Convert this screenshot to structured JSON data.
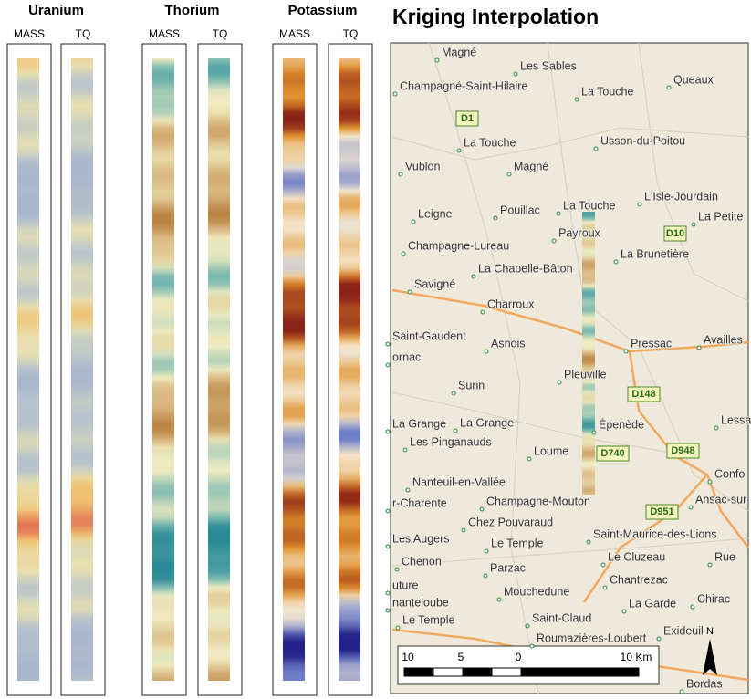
{
  "panels": [
    {
      "title": "Uranium",
      "columns": [
        "MASS",
        "TQ"
      ]
    },
    {
      "title": "Thorium",
      "columns": [
        "MASS",
        "TQ"
      ]
    },
    {
      "title": "Potassium",
      "columns": [
        "MASS",
        "TQ"
      ]
    }
  ],
  "map": {
    "title": "Kriging Interpolation",
    "places": [
      "Magné",
      "Les Sables",
      "Champagné-Saint-Hilaire",
      "La Touche",
      "Queaux",
      "La Touche",
      "Usson-du-Poitou",
      "Vublon",
      "Magné",
      "L'Isle-Jourdain",
      "Leigne",
      "Pouillac",
      "La Touche",
      "La Petite",
      "Payroux",
      "Champagne-Lureau",
      "La Brunetière",
      "La Chapelle-Bâton",
      "Savigné",
      "Charroux",
      "Saint-Gaudent",
      "Asnois",
      "Pressac",
      "Availles",
      "Pleuville",
      "Surin",
      "La Grange",
      "La Grange",
      "Épenède",
      "Les Pinganauds",
      "Loume",
      "Lessa",
      "Nanteuil-en-Vallée",
      "Confo",
      "r-Charente",
      "Champagne-Mouton",
      "Ansac-sur",
      "Chez Pouvaraud",
      "Saint-Maurice-des-Lions",
      "Les Augers",
      "Le Temple",
      "Chenon",
      "Le Cluzeau",
      "Rue",
      "Parzac",
      "Chantrezac",
      "Mouchedune",
      "Chirac",
      "Saint-Claud",
      "La Garde",
      "Le Temple",
      "Roumazières-Loubert",
      "Exideuil",
      "Bordas",
      "ornac",
      "nanteloube",
      "uture"
    ],
    "roads": [
      "D1",
      "D10",
      "D148",
      "D740",
      "D948",
      "D951"
    ],
    "scale_labels": [
      "10",
      "5",
      "0",
      "10 Km"
    ],
    "north": "N"
  }
}
